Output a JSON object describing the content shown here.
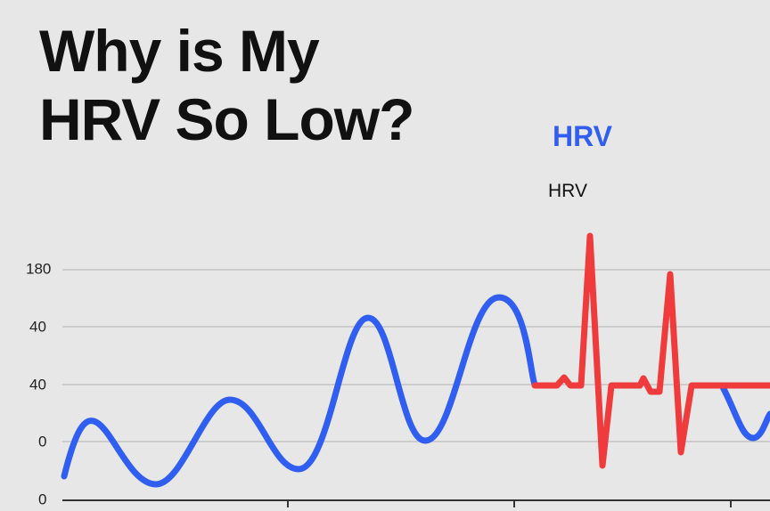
{
  "header": {
    "title_lines": [
      "Why is My",
      "HRV So Low?"
    ]
  },
  "labels": {
    "legend_title": "HRV",
    "caption": "HRV"
  },
  "axis": {
    "y_labels": [
      "180",
      "40",
      "40",
      "0",
      "0"
    ]
  }
}
